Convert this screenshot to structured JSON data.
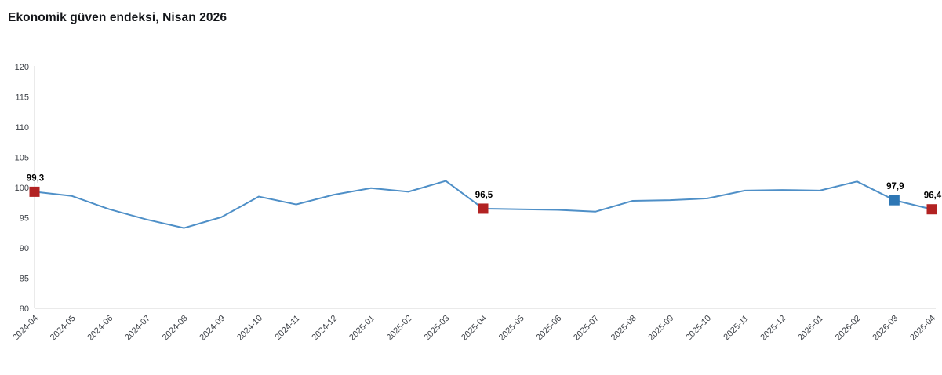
{
  "title": "Ekonomik güven endeksi, Nisan 2026",
  "chart_data": {
    "type": "line",
    "title": "Ekonomik güven endeksi, Nisan 2026",
    "xlabel": "",
    "ylabel": "",
    "ylim": [
      80,
      120
    ],
    "ytick_step": 5,
    "ytick_labels": [
      "80",
      "85",
      "90",
      "95",
      "100",
      "105",
      "110",
      "115",
      "120"
    ],
    "grid": "off",
    "legend": "none",
    "line_color": "#4e8fc7",
    "axis_color": "#d6d6d6",
    "categories": [
      "2024-04",
      "2024-05",
      "2024-06",
      "2024-07",
      "2024-08",
      "2024-09",
      "2024-10",
      "2024-11",
      "2024-12",
      "2025-01",
      "2025-02",
      "2025-03",
      "2025-04",
      "2025-05",
      "2025-06",
      "2025-07",
      "2025-08",
      "2025-09",
      "2025-10",
      "2025-11",
      "2025-12",
      "2026-01",
      "2026-02",
      "2026-03",
      "2026-04"
    ],
    "values": [
      99.3,
      98.6,
      96.4,
      94.7,
      93.3,
      95.1,
      98.5,
      97.2,
      98.8,
      99.9,
      99.3,
      101.1,
      96.5,
      96.4,
      96.3,
      96.0,
      97.8,
      97.9,
      98.2,
      99.5,
      99.6,
      99.5,
      101.0,
      97.9,
      96.4
    ],
    "highlighted_points": [
      {
        "category": "2024-04",
        "value": 99.3,
        "label": "99,3",
        "color": "#b22222"
      },
      {
        "category": "2025-04",
        "value": 96.5,
        "label": "96,5",
        "color": "#b22222"
      },
      {
        "category": "2026-03",
        "value": 97.9,
        "label": "97,9",
        "color": "#2e77b5"
      },
      {
        "category": "2026-04",
        "value": 96.4,
        "label": "96,4",
        "color": "#b22222"
      }
    ]
  }
}
